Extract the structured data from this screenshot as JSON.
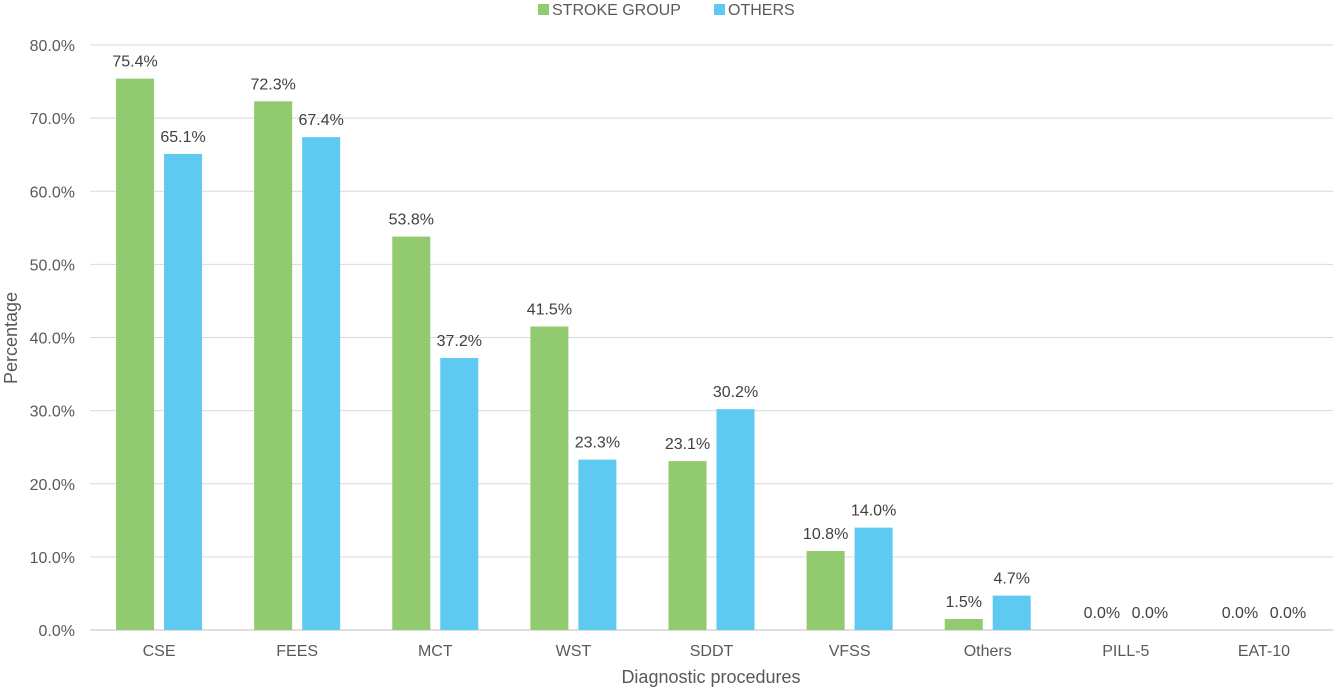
{
  "chart_data": {
    "type": "bar",
    "title": "",
    "xlabel": "Diagnostic procedures",
    "ylabel": "Percentage",
    "ylim": [
      0,
      80
    ],
    "yticks": [
      "0.0%",
      "10.0%",
      "20.0%",
      "30.0%",
      "40.0%",
      "50.0%",
      "60.0%",
      "70.0%",
      "80.0%"
    ],
    "categories": [
      "CSE",
      "FEES",
      "MCT",
      "WST",
      "SDDT",
      "VFSS",
      "Others",
      "PILL-5",
      "EAT-10"
    ],
    "series": [
      {
        "name": "STROKE GROUP",
        "color": "#92cb6f",
        "values": [
          75.4,
          72.3,
          53.8,
          41.5,
          23.1,
          10.8,
          1.5,
          0.0,
          0.0
        ],
        "labels": [
          "75.4%",
          "72.3%",
          "53.8%",
          "41.5%",
          "23.1%",
          "10.8%",
          "1.5%",
          "0.0%",
          "0.0%"
        ]
      },
      {
        "name": "OTHERS",
        "color": "#5ec9f1",
        "values": [
          65.1,
          67.4,
          37.2,
          23.3,
          30.2,
          14.0,
          4.7,
          0.0,
          0.0
        ],
        "labels": [
          "65.1%",
          "67.4%",
          "37.2%",
          "23.3%",
          "30.2%",
          "14.0%",
          "4.7%",
          "0.0%",
          "0.0%"
        ]
      }
    ],
    "grid": true,
    "legend_position": "top-center"
  }
}
